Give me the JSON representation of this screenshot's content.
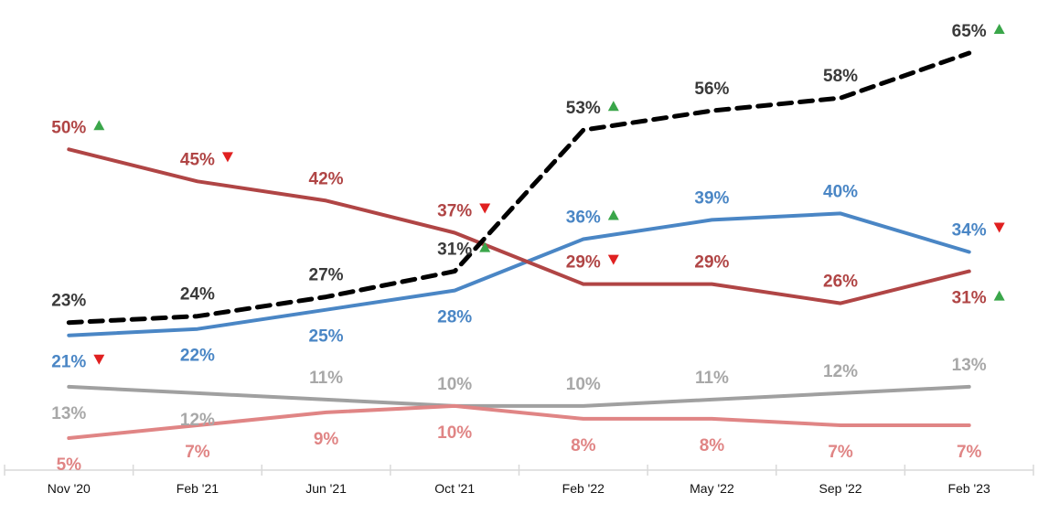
{
  "chart_data": {
    "type": "line",
    "title": "",
    "xlabel": "",
    "ylabel": "",
    "ylim": [
      0,
      70
    ],
    "grid": false,
    "legend": "none",
    "categories": [
      "Nov '20",
      "Feb '21",
      "Jun '21",
      "Oct '21",
      "Feb '22",
      "May '22",
      "Sep '22",
      "Feb '23"
    ],
    "series": [
      {
        "name": "Series A (black dashed)",
        "color": "#000000",
        "label_color": "#3a3a3a",
        "dashed": true,
        "values": [
          23,
          24,
          27,
          31,
          53,
          56,
          58,
          65
        ],
        "labels": [
          "23%",
          "24%",
          "27%",
          "31%",
          "53%",
          "56%",
          "58%",
          "65%"
        ],
        "label_pos": [
          "above",
          "above",
          "above",
          "above",
          "above",
          "above",
          "above",
          "above"
        ],
        "markers": [
          null,
          null,
          null,
          "up",
          "up",
          null,
          null,
          "up"
        ]
      },
      {
        "name": "Series B (dark red)",
        "color": "#b04545",
        "label_color": "#b04545",
        "dashed": false,
        "values": [
          50,
          45,
          42,
          37,
          29,
          29,
          26,
          31
        ],
        "labels": [
          "50%",
          "45%",
          "42%",
          "37%",
          "29%",
          "29%",
          "26%",
          "31%"
        ],
        "label_pos": [
          "above",
          "above",
          "above",
          "above",
          "above",
          "above",
          "above",
          "below"
        ],
        "markers": [
          "up",
          "down",
          null,
          "down",
          "down",
          null,
          null,
          "up"
        ]
      },
      {
        "name": "Series C (blue)",
        "color": "#4a86c5",
        "label_color": "#4a86c5",
        "dashed": false,
        "values": [
          21,
          22,
          25,
          28,
          36,
          39,
          40,
          34
        ],
        "labels": [
          "21%",
          "22%",
          "25%",
          "28%",
          "36%",
          "39%",
          "40%",
          "34%"
        ],
        "label_pos": [
          "below",
          "below",
          "below",
          "below",
          "above",
          "above",
          "above",
          "above"
        ],
        "markers": [
          "down",
          null,
          null,
          null,
          "up",
          null,
          null,
          "down"
        ]
      },
      {
        "name": "Series D (gray)",
        "color": "#a0a0a0",
        "label_color": "#a8a8a8",
        "dashed": false,
        "values": [
          13,
          12,
          11,
          10,
          10,
          11,
          12,
          13
        ],
        "labels": [
          "13%",
          "12%",
          "11%",
          "10%",
          "10%",
          "11%",
          "12%",
          "13%"
        ],
        "label_pos": [
          "below",
          "below",
          "above",
          "above",
          "above",
          "above",
          "above",
          "above"
        ],
        "markers": [
          null,
          null,
          null,
          null,
          null,
          null,
          null,
          null
        ]
      },
      {
        "name": "Series E (light red)",
        "color": "#e08585",
        "label_color": "#e08585",
        "dashed": false,
        "values": [
          5,
          7,
          9,
          10,
          8,
          8,
          7,
          7
        ],
        "labels": [
          "5%",
          "7%",
          "9%",
          "10%",
          "8%",
          "8%",
          "7%",
          "7%"
        ],
        "label_pos": [
          "below",
          "below",
          "below",
          "below",
          "below",
          "below",
          "below",
          "below"
        ],
        "markers": [
          null,
          null,
          null,
          null,
          null,
          null,
          null,
          null
        ]
      }
    ],
    "marker_colors": {
      "up": "#3aa64a",
      "down": "#e02020"
    }
  }
}
